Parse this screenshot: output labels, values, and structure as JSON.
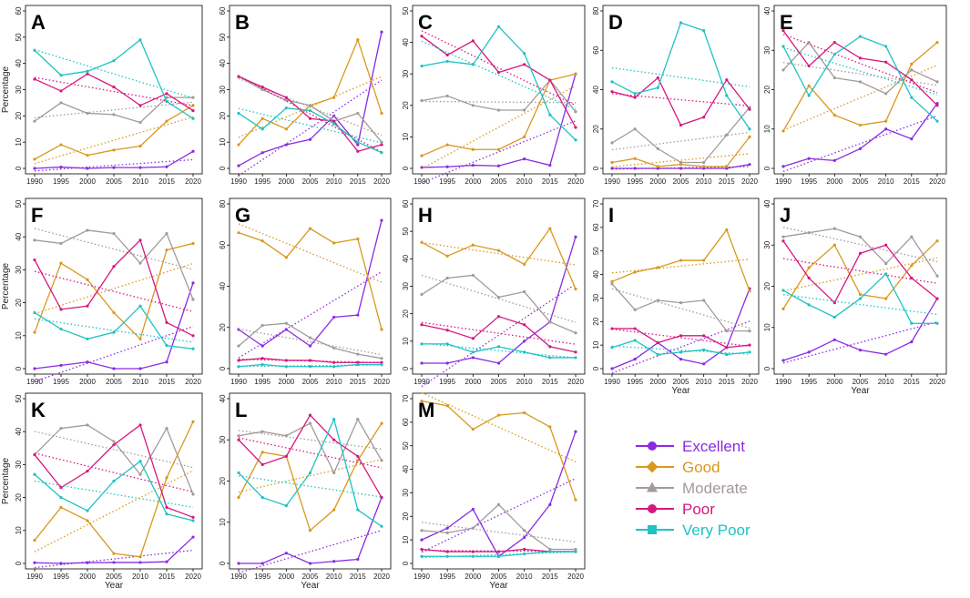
{
  "colors": {
    "Excellent": "#8a2be2",
    "Good": "#d9981e",
    "Moderate": "#a39a9a",
    "Poor": "#d6177f",
    "Very Poor": "#1ec3c3"
  },
  "legend": {
    "items": [
      "Excellent",
      "Good",
      "Moderate",
      "Poor",
      "Very Poor"
    ]
  },
  "chart_data": [
    {
      "type": "line",
      "label": "A",
      "x": [
        1990,
        1995,
        2000,
        2005,
        2010,
        2015,
        2020
      ],
      "xticks": [
        "1990",
        "1995",
        "2000",
        "2005",
        "2010",
        "2015",
        "2020"
      ],
      "ylim": [
        0,
        60
      ],
      "yticks": [
        0,
        10,
        20,
        30,
        40,
        50,
        60
      ],
      "ylabel": "Percentage",
      "xlabel": "",
      "series": [
        {
          "name": "Excellent",
          "values": [
            0,
            0.5,
            0,
            0.3,
            0.3,
            0.6,
            6.5
          ]
        },
        {
          "name": "Good",
          "values": [
            3.5,
            9,
            5,
            7,
            8.5,
            18,
            24
          ]
        },
        {
          "name": "Moderate",
          "values": [
            18,
            25,
            21,
            20.5,
            17.5,
            27,
            27
          ]
        },
        {
          "name": "Poor",
          "values": [
            34,
            29.5,
            36,
            31,
            24,
            28.5,
            22
          ]
        },
        {
          "name": "Very Poor",
          "values": [
            45,
            35.5,
            37,
            41,
            49,
            25.5,
            19
          ]
        }
      ]
    },
    {
      "type": "line",
      "label": "B",
      "x": [
        1990,
        1995,
        2000,
        2005,
        2010,
        2015,
        2020
      ],
      "xticks": [
        "1990",
        "1995",
        "2000",
        "2005",
        "2010",
        "2015",
        "2020"
      ],
      "ylim": [
        0,
        60
      ],
      "yticks": [
        0,
        10,
        20,
        30,
        40,
        50,
        60
      ],
      "ylabel": "",
      "xlabel": "",
      "series": [
        {
          "name": "Excellent",
          "values": [
            1,
            6,
            9,
            11,
            20,
            9,
            52
          ]
        },
        {
          "name": "Good",
          "values": [
            9,
            19,
            15,
            24,
            27,
            49,
            21
          ]
        },
        {
          "name": "Moderate",
          "values": [
            35,
            30,
            26,
            24,
            18,
            21,
            10
          ]
        },
        {
          "name": "Poor",
          "values": [
            35,
            31,
            27,
            19,
            18,
            6.5,
            9
          ]
        },
        {
          "name": "Very Poor",
          "values": [
            21,
            15,
            23,
            22,
            17,
            10,
            6
          ]
        }
      ]
    },
    {
      "type": "line",
      "label": "C",
      "x": [
        1990,
        1995,
        2000,
        2005,
        2010,
        2015,
        2020
      ],
      "xticks": [
        "1990",
        "1995",
        "2000",
        "2005",
        "2010",
        "2015",
        "2020"
      ],
      "ylim": [
        0,
        50
      ],
      "yticks": [
        0,
        10,
        20,
        30,
        40,
        50
      ],
      "ylabel": "",
      "xlabel": "",
      "series": [
        {
          "name": "Excellent",
          "values": [
            0.3,
            0.5,
            1,
            0.8,
            3,
            1,
            30
          ]
        },
        {
          "name": "Good",
          "values": [
            4,
            7.5,
            6,
            6,
            10,
            28,
            30
          ]
        },
        {
          "name": "Moderate",
          "values": [
            21.5,
            23,
            20,
            18.5,
            18.5,
            28,
            18
          ]
        },
        {
          "name": "Poor",
          "values": [
            42,
            36,
            40.5,
            30.5,
            33,
            28,
            13
          ]
        },
        {
          "name": "Very Poor",
          "values": [
            32.5,
            34,
            33,
            45,
            36.5,
            17,
            9
          ]
        }
      ]
    },
    {
      "type": "line",
      "label": "D",
      "x": [
        1990,
        1995,
        2000,
        2005,
        2010,
        2015,
        2020
      ],
      "xticks": [
        "1990",
        "1995",
        "2000",
        "2005",
        "2010",
        "2015",
        "2020"
      ],
      "ylim": [
        0,
        80
      ],
      "yticks": [
        0,
        20,
        40,
        60,
        80
      ],
      "ylabel": "",
      "xlabel": "",
      "series": [
        {
          "name": "Excellent",
          "values": [
            0,
            0,
            0,
            0,
            0,
            0,
            2
          ]
        },
        {
          "name": "Good",
          "values": [
            3,
            5,
            1,
            2,
            1,
            1,
            16
          ]
        },
        {
          "name": "Moderate",
          "values": [
            13,
            20,
            10,
            3,
            3,
            17,
            31
          ]
        },
        {
          "name": "Poor",
          "values": [
            39,
            36,
            46,
            22,
            26,
            45,
            30
          ]
        },
        {
          "name": "Very Poor",
          "values": [
            44,
            38,
            41,
            74,
            70,
            37,
            20
          ]
        }
      ]
    },
    {
      "type": "line",
      "label": "E",
      "x": [
        1990,
        1995,
        2000,
        2005,
        2010,
        2015,
        2020
      ],
      "xticks": [
        "1990",
        "1995",
        "2000",
        "2005",
        "2010",
        "2015",
        "2020"
      ],
      "ylim": [
        0,
        40
      ],
      "yticks": [
        0,
        10,
        20,
        30,
        40
      ],
      "ylabel": "",
      "xlabel": "",
      "series": [
        {
          "name": "Excellent",
          "values": [
            0.5,
            2.5,
            2,
            5,
            10,
            7.5,
            16.5
          ]
        },
        {
          "name": "Good",
          "values": [
            9.5,
            21,
            13.5,
            11,
            12,
            26.5,
            32
          ]
        },
        {
          "name": "Moderate",
          "values": [
            25,
            32,
            23,
            22,
            19,
            25,
            22
          ]
        },
        {
          "name": "Poor",
          "values": [
            35,
            26,
            32,
            28,
            27,
            22.5,
            16
          ]
        },
        {
          "name": "Very Poor",
          "values": [
            31,
            18.5,
            29,
            33.5,
            31,
            18,
            12
          ]
        }
      ]
    },
    {
      "type": "line",
      "label": "F",
      "x": [
        1990,
        1995,
        2000,
        2005,
        2010,
        2015,
        2020
      ],
      "xticks": [
        "1990",
        "1995",
        "2000",
        "2005",
        "2010",
        "2015",
        "2020"
      ],
      "ylim": [
        0,
        50
      ],
      "yticks": [
        0,
        10,
        20,
        30,
        40,
        50
      ],
      "ylabel": "Percentage",
      "xlabel": "",
      "series": [
        {
          "name": "Excellent",
          "values": [
            0,
            1,
            2,
            0,
            0,
            2,
            26
          ]
        },
        {
          "name": "Good",
          "values": [
            11,
            32,
            27,
            17,
            9,
            36,
            38
          ]
        },
        {
          "name": "Moderate",
          "values": [
            39,
            38,
            42,
            41,
            32,
            41,
            21
          ]
        },
        {
          "name": "Poor",
          "values": [
            33,
            18,
            19,
            31,
            39,
            14,
            10
          ]
        },
        {
          "name": "Very Poor",
          "values": [
            17,
            12,
            9,
            11,
            19,
            7,
            6
          ]
        }
      ]
    },
    {
      "type": "line",
      "label": "G",
      "x": [
        1990,
        1995,
        2000,
        2005,
        2010,
        2015,
        2020
      ],
      "xticks": [
        "1990",
        "1995",
        "2000",
        "2005",
        "2010",
        "2015",
        "2020"
      ],
      "ylim": [
        0,
        80
      ],
      "yticks": [
        0,
        20,
        40,
        60,
        80
      ],
      "ylabel": "",
      "xlabel": "",
      "series": [
        {
          "name": "Excellent",
          "values": [
            19,
            11,
            19,
            11,
            25,
            26,
            72
          ]
        },
        {
          "name": "Good",
          "values": [
            66,
            62,
            54,
            68,
            61,
            63,
            19
          ]
        },
        {
          "name": "Moderate",
          "values": [
            11,
            21,
            22,
            15,
            10,
            7,
            5
          ]
        },
        {
          "name": "Poor",
          "values": [
            4,
            5,
            4,
            4,
            3,
            3,
            3
          ]
        },
        {
          "name": "Very Poor",
          "values": [
            1,
            2,
            1,
            1,
            1,
            2,
            2
          ]
        }
      ]
    },
    {
      "type": "line",
      "label": "H",
      "x": [
        1990,
        1995,
        2000,
        2005,
        2010,
        2015,
        2020
      ],
      "xticks": [
        "1990",
        "1995",
        "2000",
        "2005",
        "2010",
        "2015",
        "2020"
      ],
      "ylim": [
        0,
        60
      ],
      "yticks": [
        0,
        10,
        20,
        30,
        40,
        50,
        60
      ],
      "ylabel": "",
      "xlabel": "",
      "series": [
        {
          "name": "Excellent",
          "values": [
            2,
            2,
            4,
            2,
            10,
            17,
            48
          ]
        },
        {
          "name": "Good",
          "values": [
            46,
            41,
            45,
            43,
            38,
            51,
            29
          ]
        },
        {
          "name": "Moderate",
          "values": [
            27,
            33,
            34,
            26,
            28,
            17,
            13
          ]
        },
        {
          "name": "Poor",
          "values": [
            16,
            14,
            11,
            19,
            16,
            8,
            6
          ]
        },
        {
          "name": "Very Poor",
          "values": [
            9,
            9,
            6,
            8,
            6,
            4,
            4
          ]
        }
      ]
    },
    {
      "type": "line",
      "label": "I",
      "x": [
        1990,
        1995,
        2000,
        2005,
        2010,
        2015,
        2020
      ],
      "xticks": [
        "1990",
        "1995",
        "2000",
        "2005",
        "2010",
        "2015",
        "2020"
      ],
      "ylim": [
        0,
        70
      ],
      "yticks": [
        0,
        10,
        20,
        30,
        40,
        50,
        60,
        70
      ],
      "ylabel": "",
      "xlabel": "Year",
      "series": [
        {
          "name": "Excellent",
          "values": [
            0,
            4,
            11,
            4,
            2,
            9,
            34
          ]
        },
        {
          "name": "Good",
          "values": [
            37,
            41,
            43,
            46,
            46,
            59,
            33
          ]
        },
        {
          "name": "Moderate",
          "values": [
            36,
            25,
            29,
            28,
            29,
            16,
            16
          ]
        },
        {
          "name": "Poor",
          "values": [
            17,
            17,
            11,
            14,
            14,
            9,
            10
          ]
        },
        {
          "name": "Very Poor",
          "values": [
            9,
            12,
            6,
            7,
            8,
            6,
            7
          ]
        }
      ]
    },
    {
      "type": "line",
      "label": "J",
      "x": [
        1990,
        1995,
        2000,
        2005,
        2010,
        2015,
        2020
      ],
      "xticks": [
        "1990",
        "1995",
        "2000",
        "2005",
        "2010",
        "2015",
        "2020"
      ],
      "ylim": [
        0,
        40
      ],
      "yticks": [
        0,
        10,
        20,
        30,
        40
      ],
      "ylabel": "",
      "xlabel": "Year",
      "series": [
        {
          "name": "Excellent",
          "values": [
            2,
            4,
            7,
            4.5,
            3.5,
            6.5,
            17
          ]
        },
        {
          "name": "Good",
          "values": [
            14.5,
            24.5,
            30,
            18,
            17,
            25,
            31
          ]
        },
        {
          "name": "Moderate",
          "values": [
            32,
            33,
            34,
            32,
            25.5,
            32,
            22.5
          ]
        },
        {
          "name": "Poor",
          "values": [
            31,
            22,
            16,
            28,
            30,
            22,
            17
          ]
        },
        {
          "name": "Very Poor",
          "values": [
            19,
            15.5,
            12.5,
            17,
            23,
            11,
            11
          ]
        }
      ]
    },
    {
      "type": "line",
      "label": "K",
      "x": [
        1990,
        1995,
        2000,
        2005,
        2010,
        2015,
        2020
      ],
      "xticks": [
        "1990",
        "1995",
        "2000",
        "2005",
        "2010",
        "2015",
        "2020"
      ],
      "ylim": [
        0,
        50
      ],
      "yticks": [
        0,
        10,
        20,
        30,
        40,
        50
      ],
      "ylabel": "Percentage",
      "xlabel": "Year",
      "series": [
        {
          "name": "Excellent",
          "values": [
            0.2,
            0,
            0.2,
            0.3,
            0.3,
            0.5,
            8
          ]
        },
        {
          "name": "Good",
          "values": [
            7,
            17,
            13,
            3,
            2,
            26,
            43
          ]
        },
        {
          "name": "Moderate",
          "values": [
            33,
            41,
            42,
            37,
            27,
            41,
            21
          ]
        },
        {
          "name": "Poor",
          "values": [
            33,
            23,
            28,
            36,
            42,
            17,
            14
          ]
        },
        {
          "name": "Very Poor",
          "values": [
            27,
            20,
            16,
            25,
            31,
            15,
            13
          ]
        }
      ]
    },
    {
      "type": "line",
      "label": "L",
      "x": [
        1990,
        1995,
        2000,
        2005,
        2010,
        2015,
        2020
      ],
      "xticks": [
        "1990",
        "1995",
        "2000",
        "2005",
        "2010",
        "2015",
        "2020"
      ],
      "ylim": [
        0,
        40
      ],
      "yticks": [
        0,
        10,
        20,
        30,
        40
      ],
      "ylabel": "",
      "xlabel": "Year",
      "series": [
        {
          "name": "Excellent",
          "values": [
            0,
            0,
            2.5,
            0,
            0.5,
            1,
            16
          ]
        },
        {
          "name": "Good",
          "values": [
            16,
            27,
            26,
            8,
            13,
            25,
            34
          ]
        },
        {
          "name": "Moderate",
          "values": [
            31,
            32,
            31,
            34,
            22,
            35,
            25
          ]
        },
        {
          "name": "Poor",
          "values": [
            30,
            24,
            26,
            36,
            30,
            26,
            16
          ]
        },
        {
          "name": "Very Poor",
          "values": [
            22,
            16,
            14,
            22,
            35,
            13,
            9
          ]
        }
      ]
    },
    {
      "type": "line",
      "label": "M",
      "x": [
        1990,
        1995,
        2000,
        2005,
        2010,
        2015,
        2020
      ],
      "xticks": [
        "1990",
        "1995",
        "2000",
        "2005",
        "2010",
        "2015",
        "2020"
      ],
      "ylim": [
        0,
        70
      ],
      "yticks": [
        0,
        10,
        20,
        30,
        40,
        50,
        60,
        70
      ],
      "ylabel": "",
      "xlabel": "Year",
      "series": [
        {
          "name": "Excellent",
          "values": [
            10,
            15,
            23,
            3,
            11,
            25,
            56
          ]
        },
        {
          "name": "Good",
          "values": [
            69,
            67,
            57,
            63,
            64,
            58,
            27
          ]
        },
        {
          "name": "Moderate",
          "values": [
            14,
            13,
            15,
            25,
            14,
            6,
            6
          ]
        },
        {
          "name": "Poor",
          "values": [
            6,
            5,
            5,
            5,
            6,
            5,
            5
          ]
        },
        {
          "name": "Very Poor",
          "values": [
            3,
            3,
            3,
            3,
            4,
            5,
            5
          ]
        }
      ]
    }
  ]
}
